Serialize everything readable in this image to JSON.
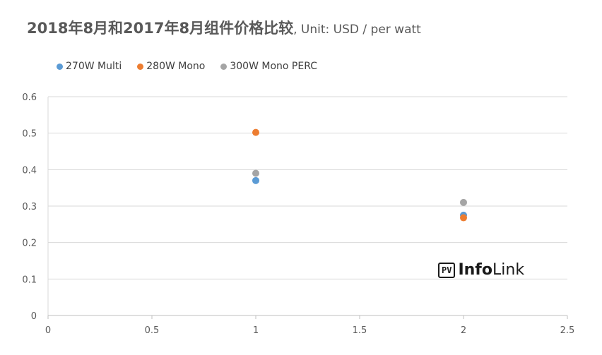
{
  "title_main": "2018年8月和2017年8月组件价格比较",
  "title_sub": ", Unit: USD / per watt",
  "logo": {
    "badge": "PV",
    "strong": "Info",
    "rest": "Link"
  },
  "chart_data": {
    "type": "scatter",
    "title": "2018年8月和2017年8月组件价格比较, Unit: USD / per watt",
    "xlim": [
      0,
      2.5
    ],
    "ylim": [
      0,
      0.6
    ],
    "x_ticks": [
      "0",
      "0.5",
      "1",
      "1.5",
      "2",
      "2.5"
    ],
    "y_ticks": [
      "0",
      "0.1",
      "0.2",
      "0.3",
      "0.4",
      "0.5",
      "0.6"
    ],
    "grid": "horizontal",
    "legend_position": "top",
    "series": [
      {
        "name": "270W Multi",
        "color": "#5b9bd5",
        "points": [
          [
            1,
            0.37
          ],
          [
            2,
            0.275
          ]
        ]
      },
      {
        "name": "280W Mono",
        "color": "#ed7d31",
        "points": [
          [
            1,
            0.502
          ],
          [
            2,
            0.268
          ]
        ]
      },
      {
        "name": "300W Mono PERC",
        "color": "#a5a5a5",
        "points": [
          [
            1,
            0.39
          ],
          [
            2,
            0.31
          ]
        ]
      }
    ]
  }
}
